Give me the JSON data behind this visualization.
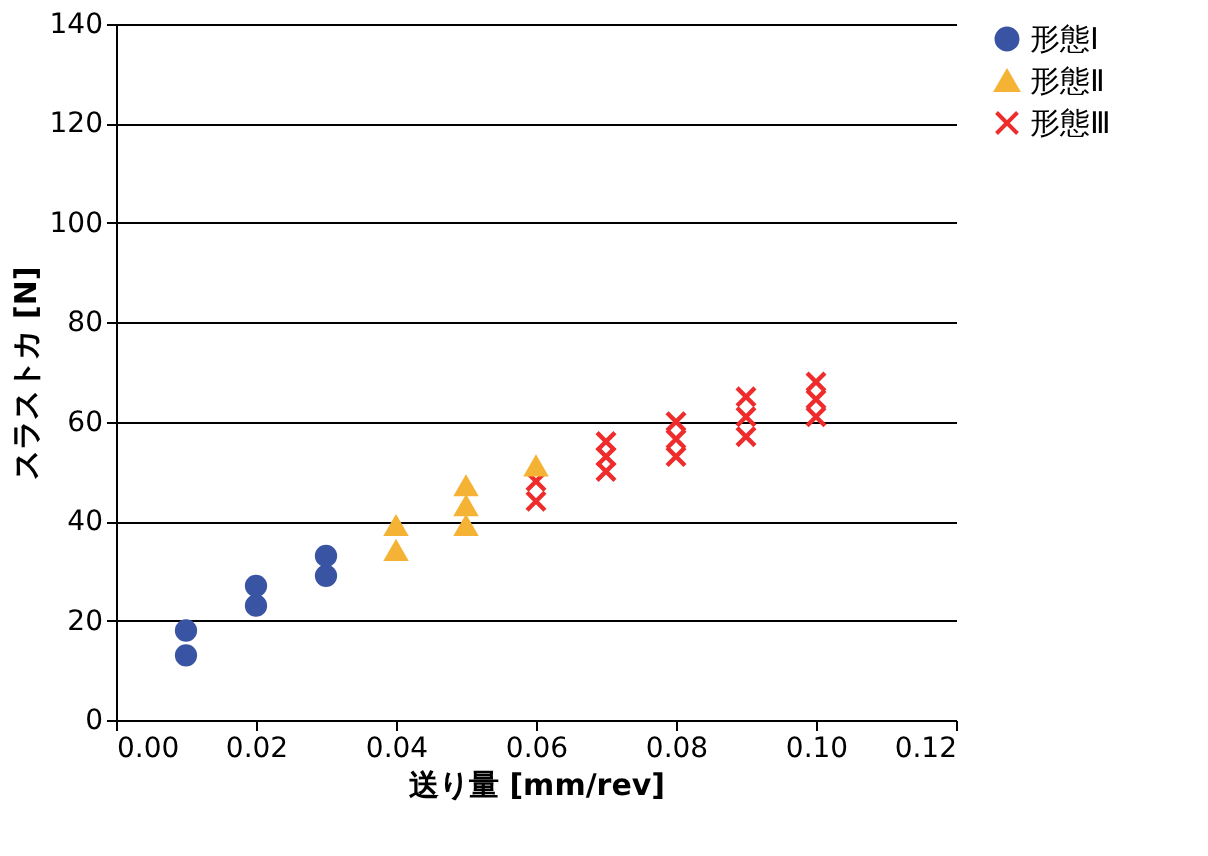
{
  "chart_data": {
    "type": "scatter",
    "xlabel": "送り量 [mm/rev]",
    "ylabel": "スラストカ [N]",
    "xlim": [
      0,
      0.12
    ],
    "xticks": [
      {
        "value": 0,
        "label": "0.00"
      },
      {
        "value": 0.02,
        "label": "0.02"
      },
      {
        "value": 0.04,
        "label": "0.04"
      },
      {
        "value": 0.06,
        "label": "0.06"
      },
      {
        "value": 0.08,
        "label": "0.08"
      },
      {
        "value": 0.1,
        "label": "0.10"
      },
      {
        "value": 0.12,
        "label": "0.12"
      }
    ],
    "ylim": [
      0,
      140
    ],
    "yticks": [
      0,
      20,
      40,
      60,
      80,
      100,
      120,
      140
    ],
    "grid": "y",
    "legend": "right",
    "series": [
      {
        "name": "形態Ⅰ",
        "color": "#3a54a4",
        "marker": "circle",
        "x": [
          0.01,
          0.01,
          0.02,
          0.02,
          0.03,
          0.03
        ],
        "values": [
          13,
          18,
          23,
          27,
          29,
          33
        ]
      },
      {
        "name": "形態Ⅱ",
        "color": "#f5b335",
        "marker": "triangle",
        "x": [
          0.04,
          0.04,
          0.05,
          0.05,
          0.05,
          0.06
        ],
        "values": [
          34,
          39,
          39,
          43,
          47,
          51
        ]
      },
      {
        "name": "形態Ⅲ",
        "color": "#ee2c2c",
        "marker": "cross",
        "x": [
          0.06,
          0.06,
          0.07,
          0.07,
          0.07,
          0.08,
          0.08,
          0.08,
          0.09,
          0.09,
          0.09,
          0.1,
          0.1,
          0.1
        ],
        "values": [
          44,
          48,
          50,
          53,
          56,
          53,
          56.5,
          60,
          57,
          61,
          65,
          61,
          64.5,
          68
        ]
      }
    ]
  }
}
